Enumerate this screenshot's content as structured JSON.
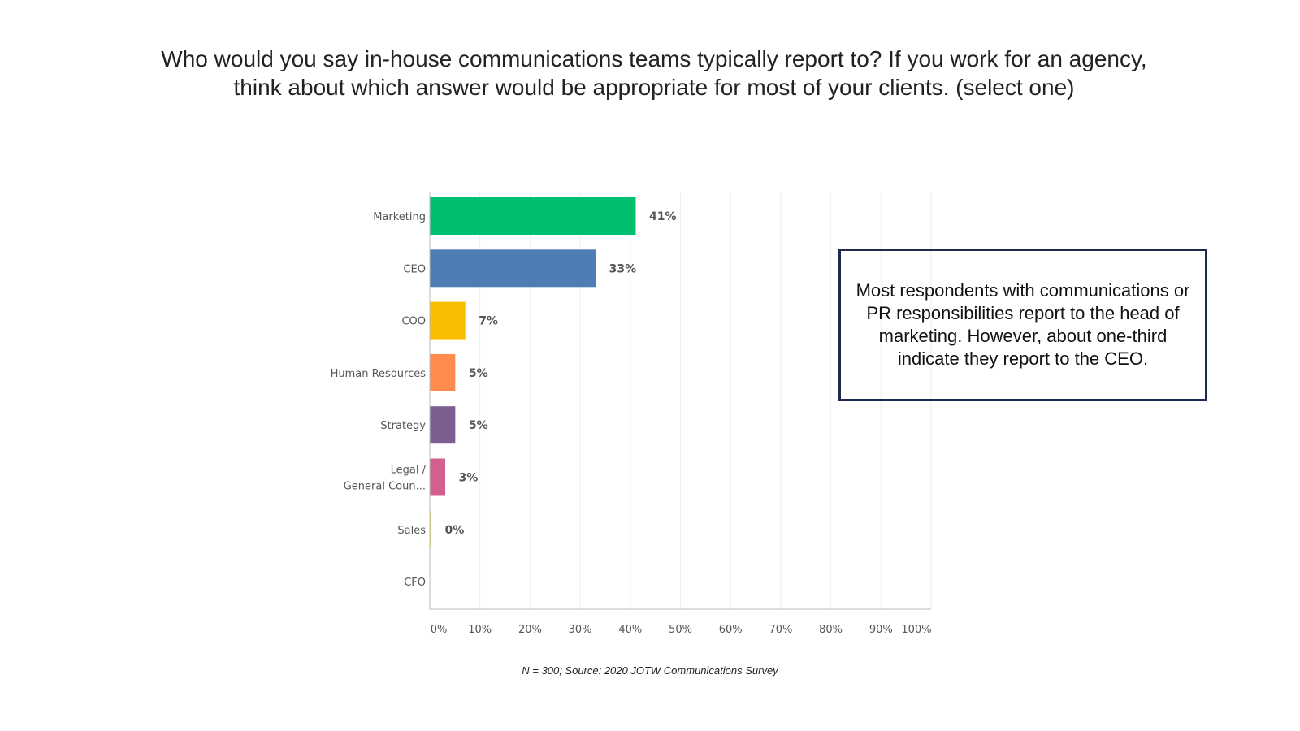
{
  "slide": {
    "title": "Who would you say in-house communications teams typically report to? If you work for an agency, think about which answer would be appropriate for most of your clients. (select one)",
    "source_note": "N = 300; Source: 2020 JOTW Communications Survey",
    "callout": "Most respondents with communications or PR responsibilities report to the head of marketing.  However, about one-third indicate they report to the CEO."
  },
  "chart_data": {
    "type": "bar",
    "orientation": "horizontal",
    "categories": [
      [
        "Marketing"
      ],
      [
        "CEO"
      ],
      [
        "COO"
      ],
      [
        "Human Resources"
      ],
      [
        "Strategy"
      ],
      [
        "Legal /",
        "General Coun..."
      ],
      [
        "Sales"
      ],
      [
        "CFO"
      ]
    ],
    "values": [
      41,
      33,
      7,
      5,
      5,
      3,
      0,
      null
    ],
    "value_labels": [
      "41%",
      "33%",
      "7%",
      "5%",
      "5%",
      "3%",
      "0%",
      ""
    ],
    "colors": [
      "#00bf6f",
      "#507cb6",
      "#f9be00",
      "#ff8b4f",
      "#7d5e90",
      "#d25f90",
      "#dad15f",
      "#6bc8cd"
    ],
    "xlim": [
      0,
      100
    ],
    "x_ticks": [
      0,
      10,
      20,
      30,
      40,
      50,
      60,
      70,
      80,
      90,
      100
    ],
    "x_tick_labels": [
      "0%",
      "10%",
      "20%",
      "30%",
      "40%",
      "50%",
      "60%",
      "70%",
      "80%",
      "90%",
      "100%"
    ],
    "grid": true,
    "grid_color": "#eeeeee"
  }
}
